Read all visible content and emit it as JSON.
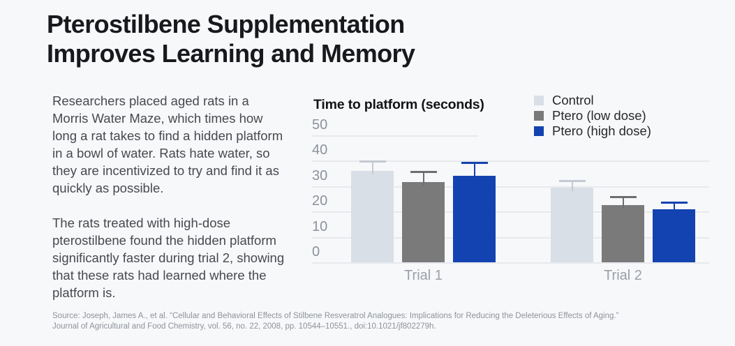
{
  "title": "Pterostilbene Supplementation\nImproves Learning and Memory",
  "intro": {
    "paragraph1": "Researchers placed aged rats in a Morris Water Maze, which times how long a rat takes to find a hidden platform in a bowl of water. Rats hate water, so they are incentivized to try and find it as quickly as possible.",
    "paragraph2": "The rats treated with high-dose pterostilbene found the hidden platform significantly faster during trial 2, showing that these rats had learned where the platform is."
  },
  "chart_data": {
    "type": "bar",
    "title": "Time to platform (seconds)",
    "categories": [
      "Trial 1",
      "Trial 2"
    ],
    "series": [
      {
        "name": "Control",
        "color": "#d9dfe6",
        "error_color": "#c3cad3",
        "values": [
          36,
          29.5
        ],
        "error_top": [
          40,
          32.5
        ]
      },
      {
        "name": "Ptero (low dose)",
        "color": "#7a7a7a",
        "error_color": "#6e6e6e",
        "values": [
          31.5,
          22.5
        ],
        "error_top": [
          36,
          26
        ]
      },
      {
        "name": "Ptero (high dose)",
        "color": "#1343b0",
        "error_color": "#1343b0",
        "values": [
          34,
          21
        ],
        "error_top": [
          39.5,
          24
        ]
      }
    ],
    "y_ticks": [
      0,
      10,
      20,
      30,
      40,
      50
    ],
    "ylim": [
      0,
      50
    ],
    "grid": true,
    "legend_position": "top-right",
    "error_bars": "upper"
  },
  "source": {
    "line1": "Source: Joseph, James A., et al. “Cellular and Behavioral Effects of Stilbene Resveratrol Analogues: Implications for Reducing the Deleterious Effects of Aging.”",
    "line2": "Journal of Agricultural and Food Chemistry, vol. 56, no. 22, 2008, pp. 10544–10551., doi:10.1021/jf802279h."
  }
}
